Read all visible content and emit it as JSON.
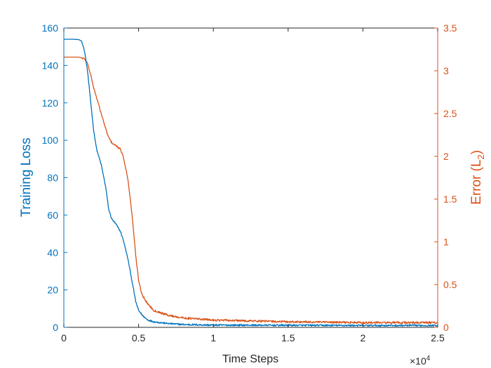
{
  "chart_data": {
    "type": "line",
    "xlabel": "Time Steps",
    "x_exponent_label": "×10",
    "x_exponent_power": "4",
    "xlim": [
      0,
      25000
    ],
    "x_ticks": [
      0,
      5000,
      10000,
      15000,
      20000,
      25000
    ],
    "x_tick_labels": [
      "0",
      "0.5",
      "1",
      "1.5",
      "2",
      "2.5"
    ],
    "y_left": {
      "label": "Training Loss",
      "lim": [
        0,
        160
      ],
      "ticks": [
        0,
        20,
        40,
        60,
        80,
        100,
        120,
        140,
        160
      ],
      "tick_labels": [
        "0",
        "20",
        "40",
        "60",
        "80",
        "100",
        "120",
        "140",
        "160"
      ],
      "color": "#0072BD"
    },
    "y_right": {
      "label_prefix": "Error (L",
      "label_subscript": "2",
      "label_suffix": ")",
      "lim": [
        0,
        3.5
      ],
      "ticks": [
        0,
        0.5,
        1,
        1.5,
        2,
        2.5,
        3,
        3.5
      ],
      "tick_labels": [
        "0",
        "0.5",
        "1",
        "1.5",
        "2",
        "2.5",
        "3",
        "3.5"
      ],
      "color": "#D95319"
    },
    "grid": false,
    "legend": "none",
    "series": [
      {
        "axis": "left",
        "color": "#0072BD",
        "points": [
          [
            0,
            154
          ],
          [
            600,
            154
          ],
          [
            1000,
            153.8
          ],
          [
            1200,
            153
          ],
          [
            1400,
            147
          ],
          [
            1600,
            136
          ],
          [
            1800,
            120
          ],
          [
            2000,
            105
          ],
          [
            2200,
            95
          ],
          [
            2500,
            87
          ],
          [
            2800,
            75
          ],
          [
            3000,
            63
          ],
          [
            3200,
            58
          ],
          [
            3500,
            55
          ],
          [
            3800,
            51
          ],
          [
            4000,
            46
          ],
          [
            4300,
            36
          ],
          [
            4600,
            23
          ],
          [
            4800,
            14
          ],
          [
            5000,
            9
          ],
          [
            5300,
            6
          ],
          [
            5600,
            4
          ],
          [
            6000,
            3
          ],
          [
            7000,
            2
          ],
          [
            8000,
            1.5
          ],
          [
            10000,
            1.2
          ],
          [
            15000,
            1.1
          ],
          [
            20000,
            1.0
          ],
          [
            25000,
            1.0
          ]
        ]
      },
      {
        "axis": "right",
        "color": "#D95319",
        "points": [
          [
            0,
            3.16
          ],
          [
            1000,
            3.16
          ],
          [
            1400,
            3.14
          ],
          [
            1600,
            3.08
          ],
          [
            1800,
            2.95
          ],
          [
            2000,
            2.8
          ],
          [
            2200,
            2.68
          ],
          [
            2500,
            2.5
          ],
          [
            2800,
            2.32
          ],
          [
            3000,
            2.22
          ],
          [
            3200,
            2.16
          ],
          [
            3500,
            2.12
          ],
          [
            3800,
            2.08
          ],
          [
            4000,
            1.98
          ],
          [
            4300,
            1.72
          ],
          [
            4600,
            1.25
          ],
          [
            4800,
            0.85
          ],
          [
            5000,
            0.55
          ],
          [
            5200,
            0.4
          ],
          [
            5500,
            0.3
          ],
          [
            6000,
            0.2
          ],
          [
            7000,
            0.14
          ],
          [
            8000,
            0.11
          ],
          [
            10000,
            0.085
          ],
          [
            15000,
            0.065
          ],
          [
            20000,
            0.055
          ],
          [
            25000,
            0.055
          ]
        ]
      }
    ]
  }
}
